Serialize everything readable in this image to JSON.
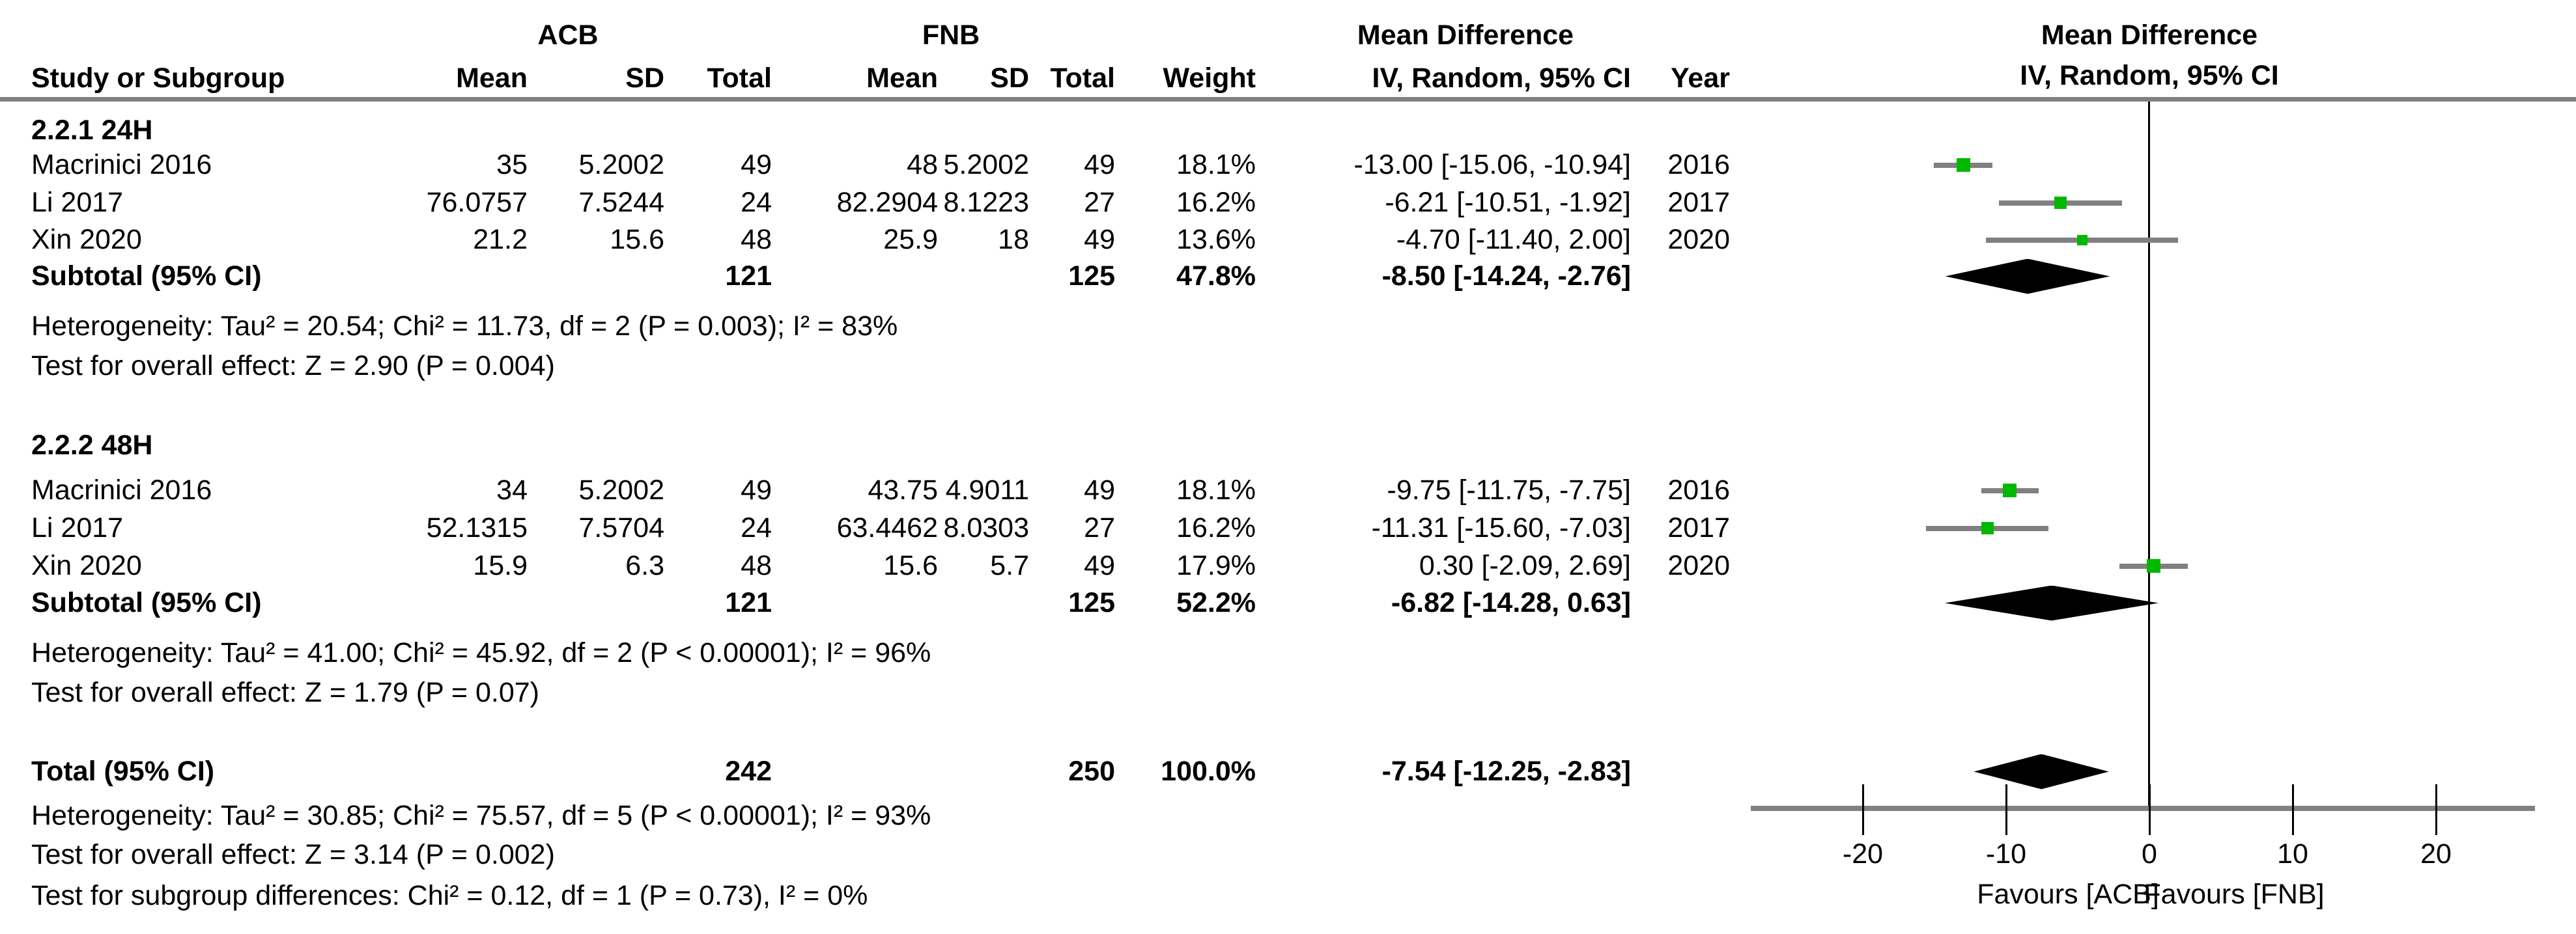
{
  "header": {
    "group1": "ACB",
    "group2": "FNB",
    "col_study": "Study or Subgroup",
    "col_mean": "Mean",
    "col_sd": "SD",
    "col_total": "Total",
    "col_weight": "Weight",
    "md_title": "Mean Difference",
    "md_sub": "IV, Random, 95% CI",
    "col_year": "Year",
    "plot_title": "Mean Difference",
    "plot_sub": "IV, Random, 95% CI"
  },
  "sections": [
    {
      "label": "2.2.1 24H",
      "studies": [
        {
          "name": "Macrinici 2016",
          "mean1": "35",
          "sd1": "5.2002",
          "total1": "49",
          "mean2": "48",
          "sd2": "5.2002",
          "total2": "49",
          "weight": "18.1%",
          "ci": "-13.00 [-15.06, -10.94]",
          "year": "2016"
        },
        {
          "name": "Li 2017",
          "mean1": "76.0757",
          "sd1": "7.5244",
          "total1": "24",
          "mean2": "82.2904",
          "sd2": "8.1223",
          "total2": "27",
          "weight": "16.2%",
          "ci": "-6.21 [-10.51, -1.92]",
          "year": "2017"
        },
        {
          "name": "Xin 2020",
          "mean1": "21.2",
          "sd1": "15.6",
          "total1": "48",
          "mean2": "25.9",
          "sd2": "18",
          "total2": "49",
          "weight": "13.6%",
          "ci": "-4.70 [-11.40, 2.00]",
          "year": "2020"
        }
      ],
      "subtotal": {
        "label": "Subtotal (95% CI)",
        "total1": "121",
        "total2": "125",
        "weight": "47.8%",
        "ci": "-8.50 [-14.24, -2.76]"
      },
      "heterogeneity": "Heterogeneity: Tau² = 20.54; Chi² = 11.73, df = 2 (P = 0.003); I² = 83%",
      "overall": "Test for overall effect: Z = 2.90 (P = 0.004)"
    },
    {
      "label": "2.2.2 48H",
      "studies": [
        {
          "name": "Macrinici 2016",
          "mean1": "34",
          "sd1": "5.2002",
          "total1": "49",
          "mean2": "43.75",
          "sd2": "4.9011",
          "total2": "49",
          "weight": "18.1%",
          "ci": "-9.75 [-11.75, -7.75]",
          "year": "2016"
        },
        {
          "name": "Li 2017",
          "mean1": "52.1315",
          "sd1": "7.5704",
          "total1": "24",
          "mean2": "63.4462",
          "sd2": "8.0303",
          "total2": "27",
          "weight": "16.2%",
          "ci": "-11.31 [-15.60, -7.03]",
          "year": "2017"
        },
        {
          "name": "Xin 2020",
          "mean1": "15.9",
          "sd1": "6.3",
          "total1": "48",
          "mean2": "15.6",
          "sd2": "5.7",
          "total2": "49",
          "weight": "17.9%",
          "ci": "0.30 [-2.09, 2.69]",
          "year": "2020"
        }
      ],
      "subtotal": {
        "label": "Subtotal (95% CI)",
        "total1": "121",
        "total2": "125",
        "weight": "52.2%",
        "ci": "-6.82 [-14.28, 0.63]"
      },
      "heterogeneity": "Heterogeneity: Tau² = 41.00; Chi² = 45.92, df = 2 (P < 0.00001); I² = 96%",
      "overall": "Test for overall effect: Z = 1.79 (P = 0.07)"
    }
  ],
  "total": {
    "label": "Total (95% CI)",
    "total1": "242",
    "total2": "250",
    "weight": "100.0%",
    "ci": "-7.54 [-12.25, -2.83]",
    "heterogeneity": "Heterogeneity: Tau² = 30.85; Chi² = 75.57, df = 5 (P < 0.00001); I² = 93%",
    "overall": "Test for overall effect: Z = 3.14 (P = 0.002)",
    "subgroup_diff": "Test for subgroup differences: Chi² = 0.12, df = 1 (P = 0.73), I² = 0%"
  },
  "chart_data": {
    "type": "forest",
    "effect_measure": "Mean Difference, IV, Random, 95% CI",
    "xlabel_left": "Favours [ACB]",
    "xlabel_right": "Favours [FNB]",
    "ticks": [
      -20,
      -10,
      0,
      10,
      20
    ],
    "xlim": [
      -27.5,
      27
    ],
    "markers": [
      {
        "row": "s1-0",
        "study": "Macrinici 2016",
        "md": -13.0,
        "lo": -15.06,
        "hi": -10.94,
        "weight": 18.1
      },
      {
        "row": "s1-1",
        "study": "Li 2017",
        "md": -6.21,
        "lo": -10.51,
        "hi": -1.92,
        "weight": 16.2
      },
      {
        "row": "s1-2",
        "study": "Xin 2020",
        "md": -4.7,
        "lo": -11.4,
        "hi": 2.0,
        "weight": 13.6
      },
      {
        "row": "s2-0",
        "study": "Macrinici 2016",
        "md": -9.75,
        "lo": -11.75,
        "hi": -7.75,
        "weight": 18.1
      },
      {
        "row": "s2-1",
        "study": "Li 2017",
        "md": -11.31,
        "lo": -15.6,
        "hi": -7.03,
        "weight": 16.2
      },
      {
        "row": "s2-2",
        "study": "Xin 2020",
        "md": 0.3,
        "lo": -2.09,
        "hi": 2.69,
        "weight": 17.9
      }
    ],
    "diamonds": [
      {
        "row": "sub1",
        "label": "Subtotal 24H",
        "md": -8.5,
        "lo": -14.24,
        "hi": -2.76
      },
      {
        "row": "sub2",
        "label": "Subtotal 48H",
        "md": -6.82,
        "lo": -14.28,
        "hi": 0.63
      },
      {
        "row": "total",
        "label": "Total",
        "md": -7.54,
        "lo": -12.25,
        "hi": -2.83
      }
    ]
  },
  "colors": {
    "square": "#00b800",
    "ci_line": "#808080",
    "axis": "#808080",
    "diamond": "#000000",
    "text": "#000000"
  }
}
